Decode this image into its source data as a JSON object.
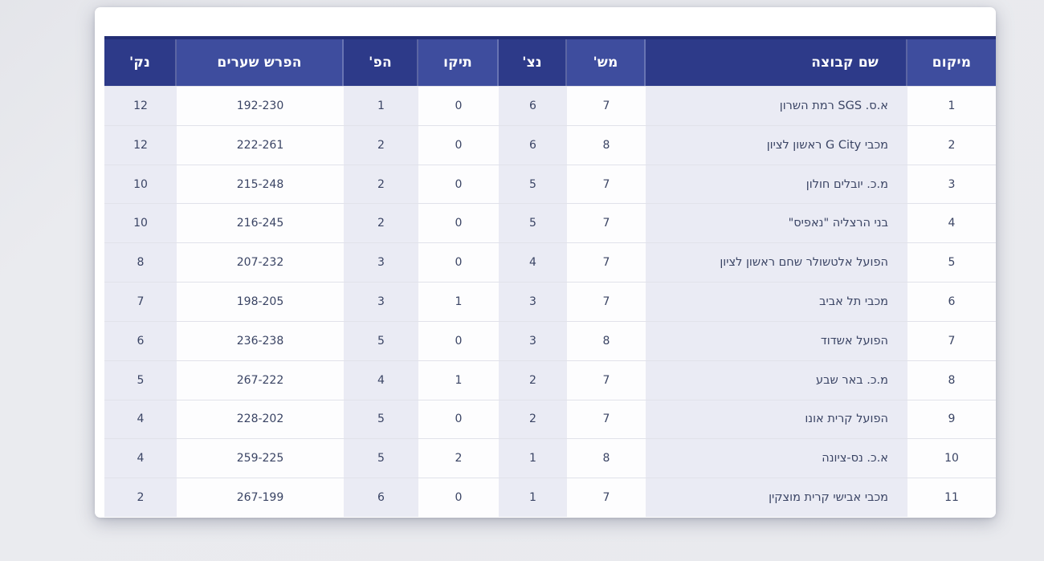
{
  "standings_table": {
    "columns": [
      {
        "key": "position",
        "label": "מיקום",
        "shade": "light"
      },
      {
        "key": "team",
        "label": "שם קבוצה",
        "shade": "dark"
      },
      {
        "key": "games",
        "label": "מש'",
        "shade": "light"
      },
      {
        "key": "wins",
        "label": "נצ'",
        "shade": "dark"
      },
      {
        "key": "draws",
        "label": "תיקו",
        "shade": "light"
      },
      {
        "key": "losses",
        "label": "הפ'",
        "shade": "dark"
      },
      {
        "key": "goal_diff",
        "label": "הפרש שערים",
        "shade": "light"
      },
      {
        "key": "points",
        "label": "נק'",
        "shade": "dark"
      }
    ],
    "rows": [
      {
        "position": "1",
        "team": "א.ס. SGS רמת השרון",
        "games": "7",
        "wins": "6",
        "draws": "0",
        "losses": "1",
        "goal_diff": "192-230",
        "points": "12"
      },
      {
        "position": "2",
        "team": "מכבי G City ראשון לציון",
        "games": "8",
        "wins": "6",
        "draws": "0",
        "losses": "2",
        "goal_diff": "222-261",
        "points": "12"
      },
      {
        "position": "3",
        "team": "מ.כ. יובלים חולון",
        "games": "7",
        "wins": "5",
        "draws": "0",
        "losses": "2",
        "goal_diff": "215-248",
        "points": "10"
      },
      {
        "position": "4",
        "team": "בני הרצליה \"נאפיס\"",
        "games": "7",
        "wins": "5",
        "draws": "0",
        "losses": "2",
        "goal_diff": "216-245",
        "points": "10"
      },
      {
        "position": "5",
        "team": "הפועל אלטשולר שחם ראשון לציון",
        "games": "7",
        "wins": "4",
        "draws": "0",
        "losses": "3",
        "goal_diff": "207-232",
        "points": "8"
      },
      {
        "position": "6",
        "team": "מכבי תל אביב",
        "games": "7",
        "wins": "3",
        "draws": "1",
        "losses": "3",
        "goal_diff": "198-205",
        "points": "7"
      },
      {
        "position": "7",
        "team": "הפועל אשדוד",
        "games": "8",
        "wins": "3",
        "draws": "0",
        "losses": "5",
        "goal_diff": "236-238",
        "points": "6"
      },
      {
        "position": "8",
        "team": "מ.כ. באר שבע",
        "games": "7",
        "wins": "2",
        "draws": "1",
        "losses": "4",
        "goal_diff": "267-222",
        "points": "5"
      },
      {
        "position": "9",
        "team": "הפועל קרית אונו",
        "games": "7",
        "wins": "2",
        "draws": "0",
        "losses": "5",
        "goal_diff": "228-202",
        "points": "4"
      },
      {
        "position": "10",
        "team": "א.כ. נס-ציונה",
        "games": "8",
        "wins": "1",
        "draws": "2",
        "losses": "5",
        "goal_diff": "259-225",
        "points": "4"
      },
      {
        "position": "11",
        "team": "מכבי אבישי קרית מוצקין",
        "games": "7",
        "wins": "1",
        "draws": "0",
        "losses": "6",
        "goal_diff": "267-199",
        "points": "2"
      }
    ],
    "colors": {
      "header_dark": "#2d3a89",
      "header_light": "#3e4d9e",
      "header_top_border": "#232e75",
      "header_text": "#ffffff",
      "cell_tinted": "#eaebf4",
      "cell_white": "#fdfdfe",
      "row_divider": "#e1e2ea",
      "body_text": "#3a4464",
      "card_background": "#ffffff",
      "page_background": "#e9eaee"
    }
  }
}
